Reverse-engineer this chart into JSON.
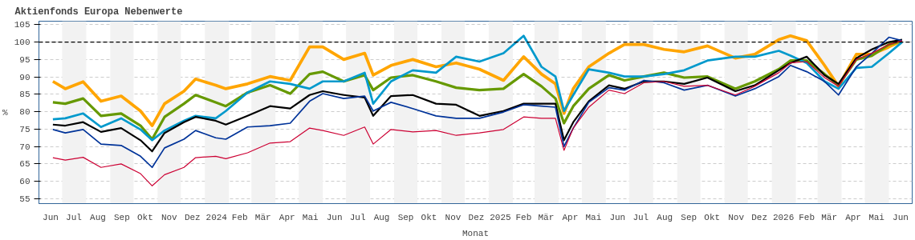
{
  "chart_data": {
    "type": "line",
    "title": "Aktienfonds Europa Nebenwerte",
    "xlabel": "Monat",
    "ylabel": "%",
    "x": [
      "2023-06-19",
      "2023-07-05",
      "2023-07-28",
      "2023-08-20",
      "2023-09-15",
      "2023-10-10",
      "2023-10-25",
      "2023-11-10",
      "2023-12-05",
      "2023-12-20",
      "2024-01-15",
      "2024-01-28",
      "2024-02-25",
      "2024-03-25",
      "2024-04-20",
      "2024-05-15",
      "2024-06-01",
      "2024-06-28",
      "2024-07-25",
      "2024-08-05",
      "2024-08-28",
      "2024-09-25",
      "2024-10-25",
      "2024-11-20",
      "2024-12-20",
      "2025-01-20",
      "2025-02-15",
      "2025-03-10",
      "2025-03-28",
      "2025-04-08",
      "2025-04-20",
      "2025-05-10",
      "2025-06-05",
      "2025-06-25",
      "2025-07-20",
      "2025-08-15",
      "2025-09-10",
      "2025-10-10",
      "2025-11-15",
      "2025-12-10",
      "2026-01-10",
      "2026-01-25",
      "2026-02-15",
      "2026-03-10",
      "2026-03-28",
      "2026-04-20",
      "2026-05-10",
      "2026-06-01",
      "2026-06-18"
    ],
    "series": [
      {
        "color": "#ffa500",
        "values": [
          88.7,
          86.6,
          88.6,
          83,
          84.5,
          80.2,
          76,
          82.3,
          85.9,
          89.4,
          87.6,
          86.6,
          88,
          90.1,
          89,
          98.6,
          98.6,
          95,
          96.8,
          90.5,
          93.3,
          95,
          92.9,
          94,
          92.2,
          89,
          95.8,
          90.8,
          88,
          79.5,
          86.6,
          92.9,
          96.8,
          99.3,
          99.3,
          97.9,
          97.2,
          98.9,
          95.4,
          96.5,
          100.7,
          101.8,
          100.4,
          93.3,
          87.3,
          96.5,
          96.5,
          98.6,
          100.4
        ]
      },
      {
        "color": "#669900",
        "values": [
          82.7,
          82.3,
          83.8,
          78.8,
          79.5,
          76,
          72.1,
          78.5,
          82.3,
          84.8,
          82.7,
          81.6,
          85.5,
          87.6,
          85.2,
          90.8,
          91.5,
          88.7,
          90.5,
          86.2,
          89.8,
          90.5,
          88.7,
          86.9,
          86.2,
          86.6,
          90.8,
          87.3,
          83.8,
          76.7,
          81.6,
          86.6,
          90.5,
          89,
          90.1,
          91.2,
          89.8,
          90.1,
          86.6,
          88.7,
          92.2,
          94.7,
          94.7,
          90.8,
          87.6,
          95,
          96.1,
          99.3,
          100.4
        ]
      },
      {
        "color": "#0099cc",
        "values": [
          77.8,
          78.1,
          79.5,
          75.6,
          78.1,
          74.9,
          71.8,
          74.6,
          77.4,
          78.8,
          78.1,
          80.2,
          85.5,
          88.7,
          88,
          86.6,
          88.7,
          88.7,
          91.2,
          82.3,
          88.7,
          91.9,
          91.2,
          95.8,
          94.4,
          96.8,
          101.8,
          92.9,
          90.1,
          80.2,
          84.8,
          92.2,
          91.2,
          90.1,
          90.1,
          90.8,
          91.9,
          94.7,
          95.8,
          95.8,
          97.5,
          96.1,
          94,
          88.7,
          86.6,
          92.6,
          92.9,
          96.8,
          100
        ]
      },
      {
        "color": "#000000",
        "values": [
          76.3,
          76,
          77,
          74.2,
          75.3,
          71.8,
          68.6,
          73.9,
          77,
          78.5,
          77.4,
          76.3,
          78.8,
          81.6,
          80.9,
          84.8,
          85.9,
          84.8,
          84.1,
          78.8,
          84.5,
          84.8,
          82.3,
          82,
          78.8,
          80.2,
          82.3,
          82.3,
          82.3,
          71.8,
          77,
          83,
          87.6,
          86.6,
          88.7,
          88.7,
          88,
          89.8,
          85.9,
          87.6,
          91.9,
          94,
          95.8,
          90.5,
          88,
          95.4,
          97.9,
          100,
          100.7
        ]
      },
      {
        "color": "#003399",
        "values": [
          74.9,
          73.9,
          74.9,
          70.7,
          70.3,
          67.2,
          64,
          69.6,
          72.1,
          74.6,
          72.5,
          72.1,
          75.6,
          76,
          76.7,
          83,
          85.2,
          83.8,
          84.5,
          80.2,
          82.7,
          80.9,
          78.8,
          78.1,
          78.1,
          79.9,
          82,
          81.6,
          81.3,
          70,
          75.3,
          82.7,
          86.9,
          86.2,
          89,
          88.3,
          86.2,
          87.6,
          84.5,
          86.6,
          90.1,
          93.3,
          91.5,
          88.7,
          84.8,
          92.9,
          96.8,
          101.4,
          100.4
        ]
      },
      {
        "color": "#cc0033",
        "values": [
          66.8,
          66.1,
          66.9,
          64,
          65,
          62.2,
          58.7,
          61.9,
          64,
          66.8,
          67.2,
          66.5,
          68.2,
          71,
          71.4,
          75.3,
          74.6,
          73.2,
          75.6,
          70.7,
          74.9,
          74.2,
          74.6,
          73.2,
          73.9,
          74.9,
          78.5,
          78.1,
          78.1,
          68.9,
          75.3,
          81.3,
          86.2,
          85.2,
          88.3,
          88.7,
          87.3,
          87.6,
          84.8,
          87.3,
          91.2,
          94,
          94.4,
          89.8,
          87.3,
          95,
          96.8,
          99.3,
          100.4
        ]
      }
    ],
    "xlim": [
      "2023-06-01",
      "2026-07-01"
    ],
    "xticks": [
      {
        "value": "2023-06-16",
        "label": "Jun"
      },
      {
        "value": "2023-07-16",
        "label": "Jul"
      },
      {
        "value": "2023-08-16",
        "label": "Aug"
      },
      {
        "value": "2023-09-16",
        "label": "Sep"
      },
      {
        "value": "2023-10-16",
        "label": "Okt"
      },
      {
        "value": "2023-11-16",
        "label": "Nov"
      },
      {
        "value": "2023-12-16",
        "label": "Dez"
      },
      {
        "value": "2024-01-16",
        "label": "2024"
      },
      {
        "value": "2024-02-15",
        "label": "Feb"
      },
      {
        "value": "2024-03-16",
        "label": "Mär"
      },
      {
        "value": "2024-04-16",
        "label": "Apr"
      },
      {
        "value": "2024-05-16",
        "label": "Mai"
      },
      {
        "value": "2024-06-16",
        "label": "Jun"
      },
      {
        "value": "2024-07-16",
        "label": "Jul"
      },
      {
        "value": "2024-08-16",
        "label": "Aug"
      },
      {
        "value": "2024-09-16",
        "label": "Sep"
      },
      {
        "value": "2024-10-16",
        "label": "Okt"
      },
      {
        "value": "2024-11-16",
        "label": "Nov"
      },
      {
        "value": "2024-12-16",
        "label": "Dez"
      },
      {
        "value": "2025-01-16",
        "label": "2025"
      },
      {
        "value": "2025-02-15",
        "label": "Feb"
      },
      {
        "value": "2025-03-16",
        "label": "Mär"
      },
      {
        "value": "2025-04-16",
        "label": "Apr"
      },
      {
        "value": "2025-05-16",
        "label": "Mai"
      },
      {
        "value": "2025-06-16",
        "label": "Jun"
      },
      {
        "value": "2025-07-16",
        "label": "Jul"
      },
      {
        "value": "2025-08-16",
        "label": "Aug"
      },
      {
        "value": "2025-09-16",
        "label": "Sep"
      },
      {
        "value": "2025-10-16",
        "label": "Okt"
      },
      {
        "value": "2025-11-16",
        "label": "Nov"
      },
      {
        "value": "2025-12-16",
        "label": "Dez"
      },
      {
        "value": "2026-01-16",
        "label": "2026"
      },
      {
        "value": "2026-02-15",
        "label": "Feb"
      },
      {
        "value": "2026-03-16",
        "label": "Mär"
      },
      {
        "value": "2026-04-16",
        "label": "Apr"
      },
      {
        "value": "2026-05-16",
        "label": "Mai"
      },
      {
        "value": "2026-06-16",
        "label": "Jun"
      }
    ],
    "ylim": [
      53.6,
      106
    ],
    "yticks": [
      55,
      60,
      65,
      70,
      75,
      80,
      85,
      90,
      95,
      100,
      105
    ],
    "grid": "y",
    "ref_lines": [
      {
        "axis": "y",
        "value": 100,
        "color": "#000000",
        "line_style": "dashed"
      }
    ],
    "bands": [
      {
        "axis": "x",
        "from": "2023-07-01",
        "to": "2023-08-01",
        "color": "#f2f2f2"
      },
      {
        "axis": "x",
        "from": "2023-09-01",
        "to": "2023-10-01",
        "color": "#f2f2f2"
      },
      {
        "axis": "x",
        "from": "2023-11-01",
        "to": "2023-12-01",
        "color": "#f2f2f2"
      },
      {
        "axis": "x",
        "from": "2024-01-01",
        "to": "2024-02-01",
        "color": "#f2f2f2"
      },
      {
        "axis": "x",
        "from": "2024-03-01",
        "to": "2024-04-01",
        "color": "#f2f2f2"
      },
      {
        "axis": "x",
        "from": "2024-05-01",
        "to": "2024-06-01",
        "color": "#f2f2f2"
      },
      {
        "axis": "x",
        "from": "2024-07-01",
        "to": "2024-08-01",
        "color": "#f2f2f2"
      },
      {
        "axis": "x",
        "from": "2024-09-01",
        "to": "2024-10-01",
        "color": "#f2f2f2"
      },
      {
        "axis": "x",
        "from": "2024-11-01",
        "to": "2024-12-01",
        "color": "#f2f2f2"
      },
      {
        "axis": "x",
        "from": "2025-01-01",
        "to": "2025-02-01",
        "color": "#f2f2f2"
      },
      {
        "axis": "x",
        "from": "2025-03-01",
        "to": "2025-04-01",
        "color": "#f2f2f2"
      },
      {
        "axis": "x",
        "from": "2025-05-01",
        "to": "2025-06-01",
        "color": "#f2f2f2"
      },
      {
        "axis": "x",
        "from": "2025-07-01",
        "to": "2025-08-01",
        "color": "#f2f2f2"
      },
      {
        "axis": "x",
        "from": "2025-09-01",
        "to": "2025-10-01",
        "color": "#f2f2f2"
      },
      {
        "axis": "x",
        "from": "2025-11-01",
        "to": "2025-12-01",
        "color": "#f2f2f2"
      },
      {
        "axis": "x",
        "from": "2026-01-01",
        "to": "2026-02-01",
        "color": "#f2f2f2"
      },
      {
        "axis": "x",
        "from": "2026-03-01",
        "to": "2026-04-01",
        "color": "#f2f2f2"
      },
      {
        "axis": "x",
        "from": "2026-05-01",
        "to": "2026-06-01",
        "color": "#f2f2f2"
      }
    ]
  }
}
